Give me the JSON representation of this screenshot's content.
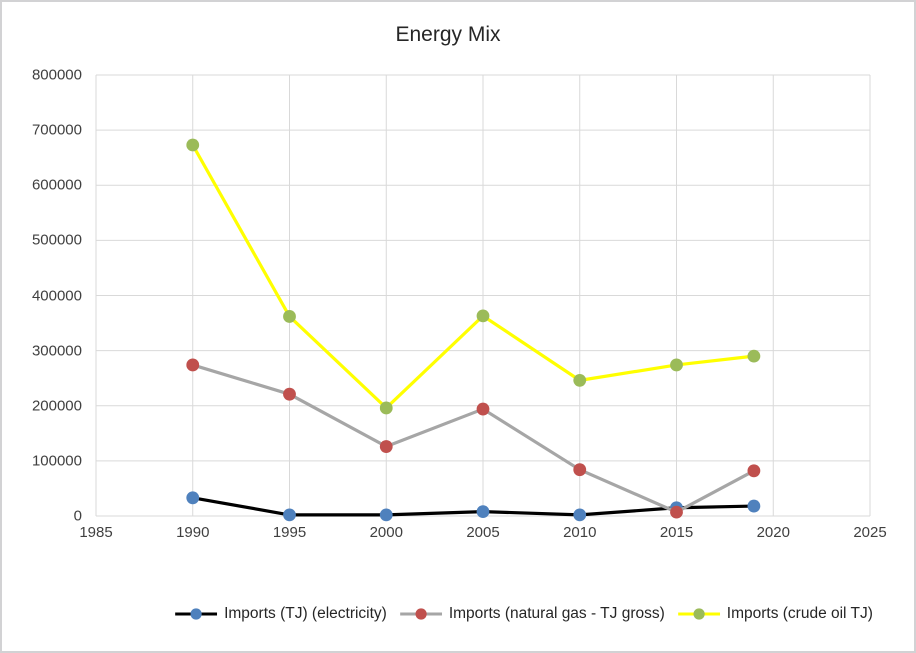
{
  "chart_data": {
    "type": "line",
    "title": "Energy Mix",
    "x": [
      1990,
      1995,
      2000,
      2005,
      2010,
      2015,
      2019
    ],
    "series": [
      {
        "name": "Imports (TJ) (electricity)",
        "line_color": "#000000",
        "marker_color": "#4F81BD",
        "values": [
          33000,
          2000,
          2000,
          8000,
          2000,
          15000,
          18000
        ]
      },
      {
        "name": "Imports (natural gas - TJ gross)",
        "line_color": "#A6A6A6",
        "marker_color": "#C0504D",
        "values": [
          274000,
          221000,
          126000,
          194000,
          84000,
          7000,
          82000
        ]
      },
      {
        "name": "Imports (crude oil TJ)",
        "line_color": "#FFFF00",
        "marker_color": "#9BBB59",
        "values": [
          673000,
          362000,
          196000,
          363000,
          246000,
          274000,
          290000
        ]
      }
    ],
    "xlim": [
      1985,
      2025
    ],
    "ylim": [
      0,
      800000
    ],
    "x_ticks": [
      1985,
      1990,
      1995,
      2000,
      2005,
      2010,
      2015,
      2020,
      2025
    ],
    "y_ticks": [
      0,
      100000,
      200000,
      300000,
      400000,
      500000,
      600000,
      700000,
      800000
    ],
    "grid": true,
    "legend_position": "bottom",
    "colors": {
      "gridline": "#D9D9D9",
      "axis_text": "#404040",
      "title_text": "#262626",
      "frame": "#D2D2D4",
      "background": "#FFFFFF"
    }
  }
}
